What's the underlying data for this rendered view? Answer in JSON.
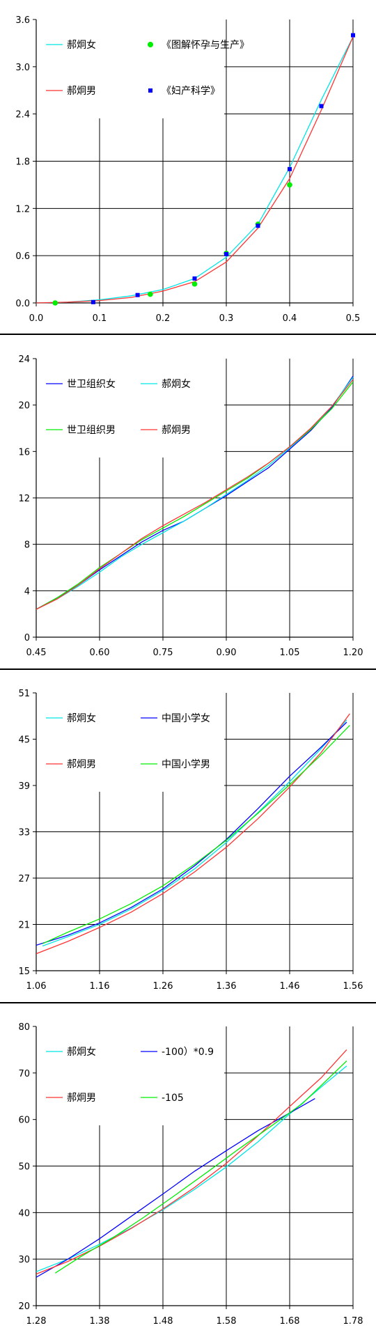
{
  "chart_data": [
    {
      "type": "line",
      "xlim": [
        0,
        0.5
      ],
      "ylim": [
        0,
        3.6
      ],
      "x_ticks": [
        "0.0",
        "0.1",
        "0.2",
        "0.3",
        "0.4",
        "0.5"
      ],
      "y_ticks": [
        "0.0",
        "0.6",
        "1.2",
        "1.8",
        "2.4",
        "3.0",
        "3.6"
      ],
      "grid": true,
      "legend_position": "top-left (inside plot)",
      "series": [
        {
          "name": "郝炯女",
          "kind": "line",
          "color": "#00e5e5",
          "points": [
            [
              0,
              0
            ],
            [
              0.05,
              0.01
            ],
            [
              0.1,
              0.04
            ],
            [
              0.15,
              0.09
            ],
            [
              0.2,
              0.17
            ],
            [
              0.25,
              0.31
            ],
            [
              0.3,
              0.58
            ],
            [
              0.35,
              1.0
            ],
            [
              0.4,
              1.72
            ],
            [
              0.45,
              2.58
            ],
            [
              0.5,
              3.38
            ]
          ]
        },
        {
          "name": "郝炯男",
          "kind": "line",
          "color": "#ff3333",
          "points": [
            [
              0,
              0
            ],
            [
              0.05,
              0.01
            ],
            [
              0.1,
              0.03
            ],
            [
              0.15,
              0.07
            ],
            [
              0.2,
              0.15
            ],
            [
              0.25,
              0.27
            ],
            [
              0.3,
              0.52
            ],
            [
              0.35,
              0.95
            ],
            [
              0.4,
              1.58
            ],
            [
              0.45,
              2.45
            ],
            [
              0.5,
              3.38
            ]
          ]
        },
        {
          "name": "《图解怀孕与生产》",
          "kind": "marker",
          "marker": "circle",
          "color": "#00ee00",
          "points": [
            [
              0.03,
              0.0
            ],
            [
              0.18,
              0.11
            ],
            [
              0.25,
              0.24
            ],
            [
              0.3,
              0.63
            ],
            [
              0.35,
              1.0
            ],
            [
              0.4,
              1.5
            ]
          ]
        },
        {
          "name": "《妇产科学》",
          "kind": "marker",
          "marker": "square",
          "color": "#0000ff",
          "points": [
            [
              0.09,
              0.01
            ],
            [
              0.16,
              0.1
            ],
            [
              0.25,
              0.31
            ],
            [
              0.3,
              0.62
            ],
            [
              0.35,
              0.98
            ],
            [
              0.4,
              1.7
            ],
            [
              0.45,
              2.5
            ],
            [
              0.5,
              3.4
            ]
          ]
        }
      ],
      "legend": [
        {
          "series": 0,
          "col": 0,
          "row": 0
        },
        {
          "series": 2,
          "col": 1,
          "row": 0
        },
        {
          "series": 1,
          "col": 0,
          "row": 1
        },
        {
          "series": 3,
          "col": 1,
          "row": 1
        }
      ]
    },
    {
      "type": "line",
      "xlim": [
        0.45,
        1.2
      ],
      "ylim": [
        0,
        24
      ],
      "x_ticks": [
        "0.45",
        "0.60",
        "0.75",
        "0.90",
        "1.05",
        "1.20"
      ],
      "y_ticks": [
        "0",
        "4",
        "8",
        "12",
        "16",
        "20",
        "24"
      ],
      "grid": true,
      "legend_position": "top-left (inside plot)",
      "series": [
        {
          "name": "世卫组织女",
          "kind": "line",
          "color": "#0000ff",
          "points": [
            [
              0.45,
              2.4
            ],
            [
              0.5,
              3.4
            ],
            [
              0.55,
              4.5
            ],
            [
              0.6,
              5.8
            ],
            [
              0.65,
              7.0
            ],
            [
              0.7,
              8.2
            ],
            [
              0.75,
              9.2
            ],
            [
              0.8,
              10.0
            ],
            [
              0.85,
              11.1
            ],
            [
              0.9,
              12.2
            ],
            [
              0.95,
              13.4
            ],
            [
              1.0,
              14.6
            ],
            [
              1.05,
              16.2
            ],
            [
              1.1,
              17.8
            ],
            [
              1.15,
              19.8
            ],
            [
              1.2,
              22.5
            ]
          ]
        },
        {
          "name": "郝炯女",
          "kind": "line",
          "color": "#00e5e5",
          "points": [
            [
              0.45,
              2.4
            ],
            [
              0.5,
              3.3
            ],
            [
              0.55,
              4.4
            ],
            [
              0.6,
              5.6
            ],
            [
              0.65,
              6.9
            ],
            [
              0.7,
              8.0
            ],
            [
              0.75,
              9.0
            ],
            [
              0.8,
              10.0
            ],
            [
              0.85,
              11.1
            ],
            [
              0.9,
              12.3
            ],
            [
              0.95,
              13.5
            ],
            [
              1.0,
              14.8
            ],
            [
              1.05,
              16.3
            ],
            [
              1.1,
              17.9
            ],
            [
              1.15,
              19.9
            ],
            [
              1.2,
              22.4
            ]
          ]
        },
        {
          "name": "世卫组织男",
          "kind": "line",
          "color": "#00ee00",
          "points": [
            [
              0.45,
              2.4
            ],
            [
              0.5,
              3.4
            ],
            [
              0.55,
              4.6
            ],
            [
              0.6,
              6.0
            ],
            [
              0.65,
              7.2
            ],
            [
              0.7,
              8.4
            ],
            [
              0.75,
              9.4
            ],
            [
              0.8,
              10.4
            ],
            [
              0.85,
              11.5
            ],
            [
              0.9,
              12.6
            ],
            [
              0.95,
              13.7
            ],
            [
              1.0,
              15.0
            ],
            [
              1.05,
              16.4
            ],
            [
              1.1,
              17.9
            ],
            [
              1.15,
              19.7
            ],
            [
              1.2,
              22.0
            ]
          ]
        },
        {
          "name": "郝炯男",
          "kind": "line",
          "color": "#ff3333",
          "points": [
            [
              0.45,
              2.4
            ],
            [
              0.5,
              3.3
            ],
            [
              0.55,
              4.5
            ],
            [
              0.6,
              5.9
            ],
            [
              0.65,
              7.2
            ],
            [
              0.7,
              8.5
            ],
            [
              0.75,
              9.6
            ],
            [
              0.8,
              10.6
            ],
            [
              0.85,
              11.6
            ],
            [
              0.9,
              12.7
            ],
            [
              0.95,
              13.8
            ],
            [
              1.0,
              15.0
            ],
            [
              1.05,
              16.4
            ],
            [
              1.1,
              18.0
            ],
            [
              1.15,
              19.9
            ],
            [
              1.2,
              22.2
            ]
          ]
        }
      ],
      "legend": [
        {
          "series": 0,
          "col": 0,
          "row": 0
        },
        {
          "series": 1,
          "col": 1,
          "row": 0
        },
        {
          "series": 2,
          "col": 0,
          "row": 1
        },
        {
          "series": 3,
          "col": 1,
          "row": 1
        }
      ]
    },
    {
      "type": "line",
      "xlim": [
        1.06,
        1.56
      ],
      "ylim": [
        15,
        51
      ],
      "x_ticks": [
        "1.06",
        "1.16",
        "1.26",
        "1.36",
        "1.46",
        "1.56"
      ],
      "y_ticks": [
        "15",
        "21",
        "27",
        "33",
        "39",
        "45",
        "51"
      ],
      "grid": true,
      "legend_position": "top-left (inside plot)",
      "series": [
        {
          "name": "郝炯女",
          "kind": "line",
          "color": "#00e5e5",
          "points": [
            [
              1.07,
              18.2
            ],
            [
              1.11,
              19.4
            ],
            [
              1.16,
              21.0
            ],
            [
              1.21,
              23.0
            ],
            [
              1.26,
              25.4
            ],
            [
              1.31,
              28.2
            ],
            [
              1.36,
              31.6
            ],
            [
              1.41,
              35.5
            ],
            [
              1.46,
              39.5
            ],
            [
              1.51,
              43.8
            ],
            [
              1.55,
              47.5
            ]
          ]
        },
        {
          "name": "中国小学女",
          "kind": "line",
          "color": "#0000ff",
          "points": [
            [
              1.06,
              18.3
            ],
            [
              1.11,
              19.6
            ],
            [
              1.16,
              21.2
            ],
            [
              1.21,
              23.2
            ],
            [
              1.26,
              25.6
            ],
            [
              1.31,
              28.6
            ],
            [
              1.36,
              32.0
            ],
            [
              1.41,
              36.0
            ],
            [
              1.46,
              40.2
            ],
            [
              1.51,
              44.0
            ],
            [
              1.55,
              47.2
            ]
          ]
        },
        {
          "name": "郝炯男",
          "kind": "line",
          "color": "#ff3333",
          "points": [
            [
              1.06,
              17.2
            ],
            [
              1.11,
              18.8
            ],
            [
              1.16,
              20.6
            ],
            [
              1.21,
              22.6
            ],
            [
              1.26,
              25.0
            ],
            [
              1.31,
              27.8
            ],
            [
              1.36,
              31.0
            ],
            [
              1.41,
              34.7
            ],
            [
              1.46,
              38.8
            ],
            [
              1.51,
              43.3
            ],
            [
              1.555,
              48.3
            ]
          ]
        },
        {
          "name": "中国小学男",
          "kind": "line",
          "color": "#00ee00",
          "points": [
            [
              1.07,
              18.5
            ],
            [
              1.11,
              20.0
            ],
            [
              1.16,
              21.7
            ],
            [
              1.21,
              23.7
            ],
            [
              1.26,
              26.0
            ],
            [
              1.31,
              28.8
            ],
            [
              1.36,
              31.9
            ],
            [
              1.41,
              35.4
            ],
            [
              1.46,
              39.1
            ],
            [
              1.51,
              43.0
            ],
            [
              1.555,
              46.8
            ]
          ]
        }
      ],
      "legend": [
        {
          "series": 0,
          "col": 0,
          "row": 0
        },
        {
          "series": 1,
          "col": 1,
          "row": 0
        },
        {
          "series": 2,
          "col": 0,
          "row": 1
        },
        {
          "series": 3,
          "col": 1,
          "row": 1
        }
      ]
    },
    {
      "type": "line",
      "xlim": [
        1.28,
        1.78
      ],
      "ylim": [
        20,
        80
      ],
      "x_ticks": [
        "1.28",
        "1.38",
        "1.48",
        "1.58",
        "1.68",
        "1.78"
      ],
      "y_ticks": [
        "20",
        "30",
        "40",
        "50",
        "60",
        "70",
        "80"
      ],
      "grid": true,
      "legend_position": "top-left (inside plot)",
      "series": [
        {
          "name": "郝炯女",
          "kind": "line",
          "color": "#00e5e5",
          "points": [
            [
              1.28,
              27.3
            ],
            [
              1.33,
              30.0
            ],
            [
              1.38,
              33.2
            ],
            [
              1.43,
              36.7
            ],
            [
              1.48,
              40.6
            ],
            [
              1.53,
              45.0
            ],
            [
              1.58,
              49.8
            ],
            [
              1.63,
              55.2
            ],
            [
              1.68,
              61.2
            ],
            [
              1.73,
              67.0
            ],
            [
              1.77,
              71.5
            ]
          ]
        },
        {
          "name": "-100）*0.9",
          "kind": "line",
          "color": "#0000ff",
          "points": [
            [
              1.28,
              26.1
            ],
            [
              1.33,
              30.0
            ],
            [
              1.38,
              34.4
            ],
            [
              1.43,
              39.2
            ],
            [
              1.48,
              44.0
            ],
            [
              1.53,
              48.9
            ],
            [
              1.58,
              53.3
            ],
            [
              1.63,
              57.6
            ],
            [
              1.68,
              61.4
            ],
            [
              1.72,
              64.5
            ]
          ]
        },
        {
          "name": "郝炯男",
          "kind": "line",
          "color": "#ff3333",
          "points": [
            [
              1.28,
              26.8
            ],
            [
              1.33,
              29.5
            ],
            [
              1.38,
              32.8
            ],
            [
              1.43,
              36.6
            ],
            [
              1.48,
              40.8
            ],
            [
              1.53,
              45.4
            ],
            [
              1.58,
              50.6
            ],
            [
              1.63,
              56.5
            ],
            [
              1.68,
              62.8
            ],
            [
              1.73,
              69.0
            ],
            [
              1.77,
              75.0
            ]
          ]
        },
        {
          "name": "-105",
          "kind": "line",
          "color": "#00ee00",
          "points": [
            [
              1.31,
              27.0
            ],
            [
              1.35,
              30.5
            ],
            [
              1.4,
              34.5
            ],
            [
              1.45,
              39.0
            ],
            [
              1.5,
              43.8
            ],
            [
              1.55,
              48.7
            ],
            [
              1.6,
              53.7
            ],
            [
              1.65,
              58.5
            ],
            [
              1.7,
              63.4
            ],
            [
              1.77,
              72.6
            ]
          ]
        }
      ],
      "legend": [
        {
          "series": 0,
          "col": 0,
          "row": 0
        },
        {
          "series": 1,
          "col": 1,
          "row": 0
        },
        {
          "series": 2,
          "col": 0,
          "row": 1
        },
        {
          "series": 3,
          "col": 1,
          "row": 1
        }
      ]
    }
  ]
}
